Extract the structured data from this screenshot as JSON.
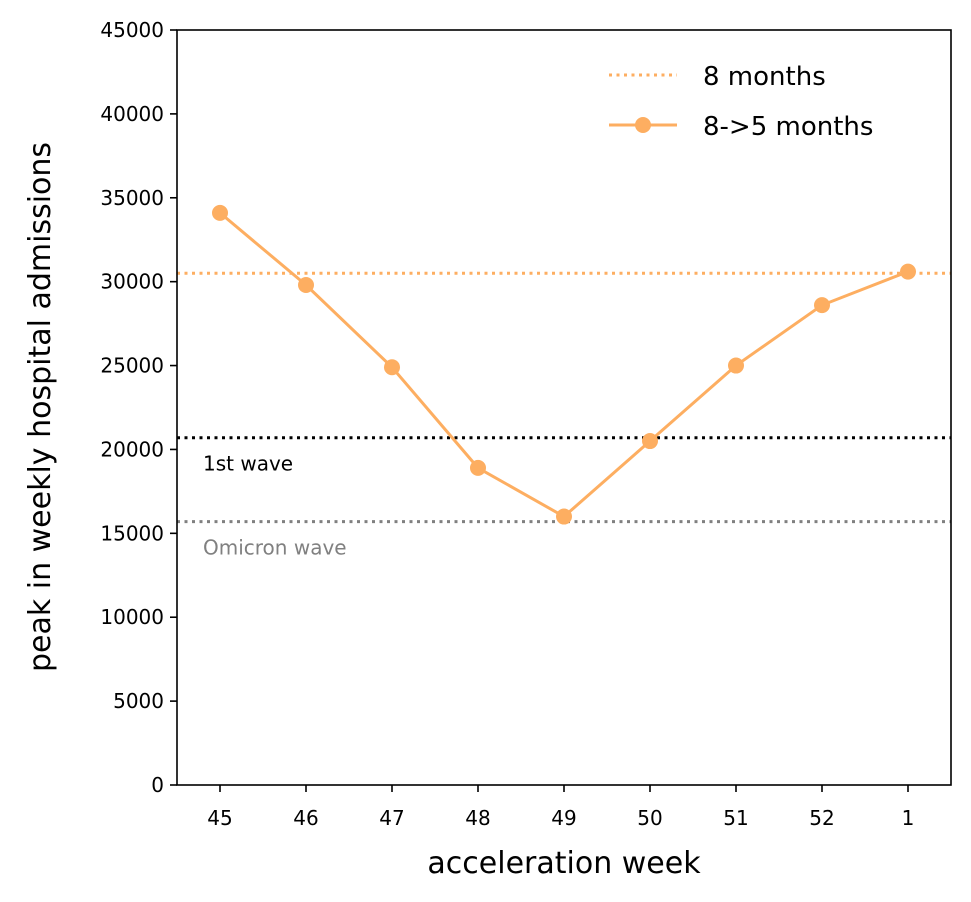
{
  "chart_data": {
    "type": "line",
    "xlabel": "acceleration week",
    "ylabel": "peak in weekly hospital admissions",
    "categories": [
      "45",
      "46",
      "47",
      "48",
      "49",
      "50",
      "51",
      "52",
      "1"
    ],
    "ylim": [
      0,
      45000
    ],
    "yticks": [
      0,
      5000,
      10000,
      15000,
      20000,
      25000,
      30000,
      35000,
      40000,
      45000
    ],
    "series": [
      {
        "name": "8->5 months",
        "color": "#fdae61",
        "values": [
          34100,
          29800,
          24900,
          18900,
          16000,
          20500,
          25000,
          28600,
          30600
        ]
      }
    ],
    "reference_lines": [
      {
        "id": "8-months",
        "name": "8 months",
        "value": 30500,
        "color": "#fdae61",
        "style": "dotted",
        "in_legend": true
      },
      {
        "id": "1st-wave",
        "name": "1st wave",
        "value": 20700,
        "color": "#000000",
        "style": "dotted",
        "in_legend": false
      },
      {
        "id": "omicron-wave",
        "name": "Omicron wave",
        "value": 15700,
        "color": "#808080",
        "style": "dotted",
        "in_legend": false
      }
    ],
    "legend": {
      "placement": "top-right",
      "entries": [
        {
          "label": "8 months",
          "kind": "dotted-line",
          "color": "#fdae61"
        },
        {
          "label": "8->5 months",
          "kind": "line-marker",
          "color": "#fdae61"
        }
      ]
    },
    "grid": false
  }
}
